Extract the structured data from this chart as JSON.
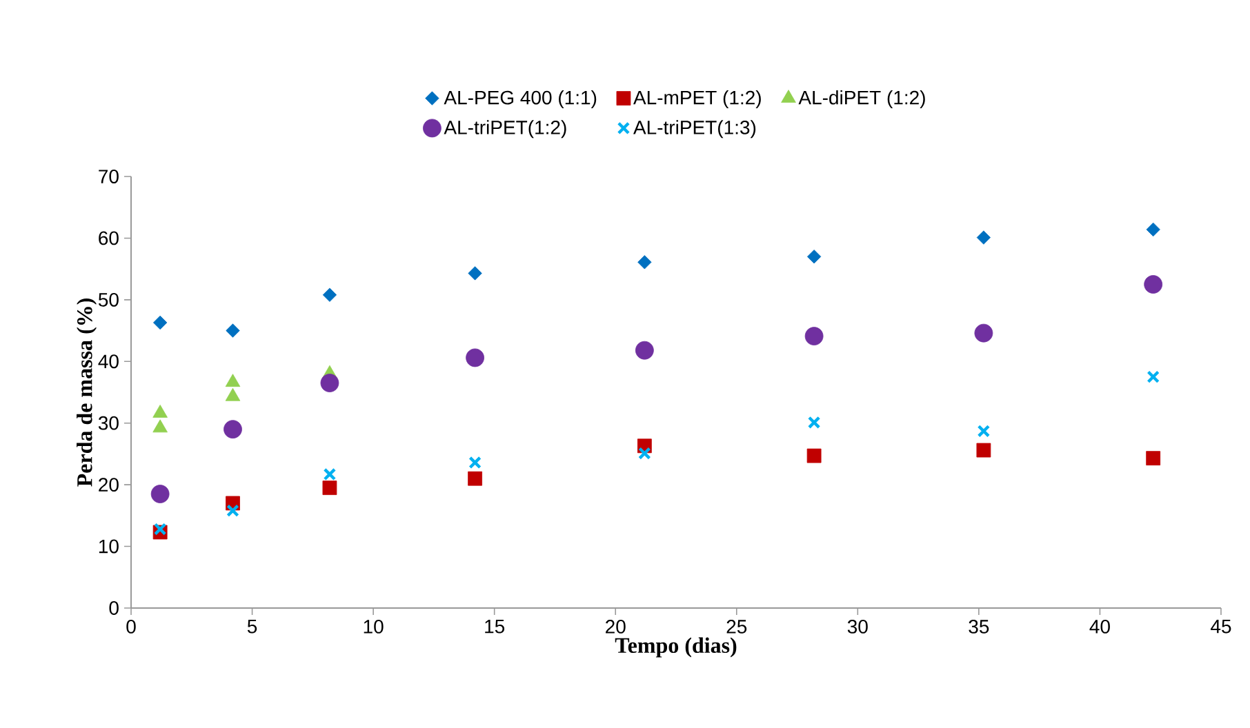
{
  "chart_data": {
    "type": "scatter",
    "xlabel": "Tempo (dias)",
    "ylabel": "Perda de massa (%)",
    "xlim": [
      0,
      45
    ],
    "xticks": [
      0,
      5,
      10,
      15,
      20,
      25,
      30,
      35,
      40,
      45
    ],
    "ylim": [
      0,
      70
    ],
    "yticks": [
      0,
      10,
      20,
      30,
      40,
      50,
      60,
      70
    ],
    "grid": false,
    "legend": "top",
    "series": [
      {
        "name": "AL-PEG 400 (1:1)",
        "color": "#0070c0",
        "marker": "diamond",
        "x": [
          1.2,
          4.2,
          8.2,
          14.2,
          21.2,
          28.2,
          35.2,
          42.2
        ],
        "values": [
          46.3,
          45,
          50.8,
          54.3,
          56.1,
          57,
          60.1,
          61.4
        ]
      },
      {
        "name": "AL-mPET (1:2)",
        "color": "#c00000",
        "marker": "square",
        "x": [
          1.2,
          4.2,
          8.2,
          14.2,
          21.2,
          28.2,
          35.2,
          42.2
        ],
        "values": [
          12.3,
          17,
          19.5,
          21,
          26.3,
          24.7,
          25.6,
          24.3
        ]
      },
      {
        "name": "AL-diPET (1:2)",
        "color": "#92d050",
        "marker": "triangle",
        "x": [
          1.2,
          1.2,
          4.2,
          4.2,
          8.2
        ],
        "values": [
          31.6,
          29.2,
          36.6,
          34.3,
          38
        ]
      },
      {
        "name": "AL-triPET(1:2)",
        "color": "#7030a0",
        "marker": "circle",
        "x": [
          1.2,
          4.2,
          8.2,
          14.2,
          21.2,
          28.2,
          35.2,
          42.2
        ],
        "values": [
          18.5,
          29,
          36.5,
          40.6,
          41.8,
          44.1,
          44.6,
          52.5
        ]
      },
      {
        "name": "AL-triPET(1:3)",
        "color": "#00b0f0",
        "marker": "cross",
        "x": [
          1.2,
          4.2,
          8.2,
          14.2,
          21.2,
          28.2,
          35.2,
          42.2
        ],
        "values": [
          12.8,
          15.8,
          21.7,
          23.6,
          25.1,
          30.1,
          28.7,
          37.5
        ]
      }
    ]
  }
}
